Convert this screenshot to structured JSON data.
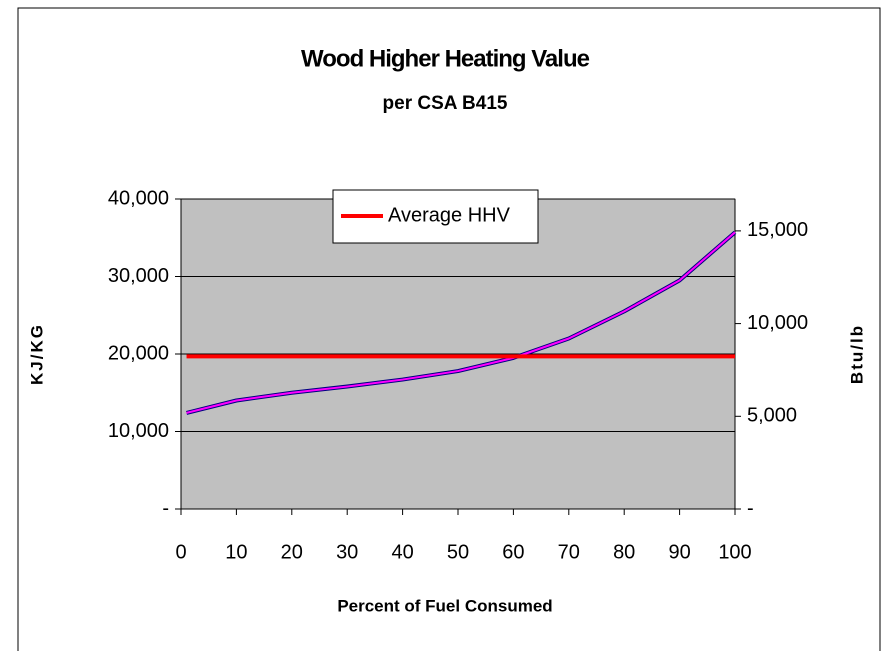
{
  "chart_data": {
    "type": "line",
    "title": "Wood Higher Heating Value",
    "subtitle": "per CSA B415",
    "x_label": "Percent of Fuel Consumed",
    "y_label": "KJ/KG",
    "y2_label": "Btu/lb",
    "x": [
      1,
      10,
      20,
      30,
      40,
      50,
      60,
      70,
      80,
      90,
      100
    ],
    "series": [
      {
        "color": "#000080",
        "width": 4,
        "values": [
          12400,
          14000,
          15000,
          15800,
          16700,
          17800,
          19500,
          22000,
          25500,
          29500,
          35700
        ]
      },
      {
        "color": "#ff00ff",
        "width": 2,
        "axis": "y2",
        "values": [
          5183,
          5852,
          6270,
          6604,
          6981,
          7440,
          8151,
          9196,
          10659,
          12331,
          14923
        ]
      },
      {
        "name": "Average HHV",
        "color": "#ff0000",
        "width": 4,
        "values": [
          19700,
          19700,
          19700,
          19700,
          19700,
          19700,
          19700,
          19700,
          19700,
          19700,
          19700
        ]
      }
    ],
    "xlim": [
      0,
      100
    ],
    "xticks": [
      0,
      10,
      20,
      30,
      40,
      50,
      60,
      70,
      80,
      90,
      100
    ],
    "ylim": [
      0,
      40000
    ],
    "yticks": [
      {
        "value": 0,
        "label": "-"
      },
      {
        "value": 10000,
        "label": "10,000"
      },
      {
        "value": 20000,
        "label": "20,000"
      },
      {
        "value": 30000,
        "label": "30,000"
      },
      {
        "value": 40000,
        "label": "40,000"
      }
    ],
    "y2lim": [
      0,
      16720
    ],
    "y2ticks": [
      {
        "value": 0,
        "label": "-"
      },
      {
        "value": 5000,
        "label": "5,000"
      },
      {
        "value": 10000,
        "label": "10,000"
      },
      {
        "value": 15000,
        "label": "15,000"
      }
    ],
    "grid": true,
    "legend": "top",
    "plot_background": "#c0c0c0"
  }
}
